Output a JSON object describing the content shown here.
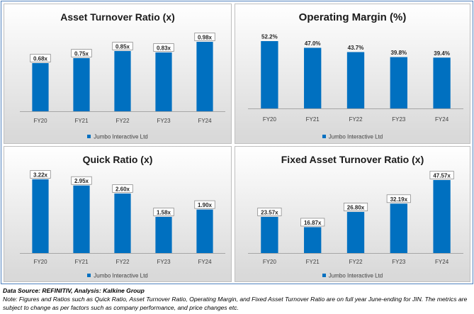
{
  "series_name": "Jumbo Interactive Ltd",
  "bar_color": "#0070c0",
  "chart_data": [
    {
      "type": "bar",
      "title": "Asset Turnover Ratio (x)",
      "categories": [
        "FY20",
        "FY21",
        "FY22",
        "FY23",
        "FY24"
      ],
      "values": [
        0.68,
        0.75,
        0.85,
        0.83,
        0.98
      ],
      "labels": [
        "0.68x",
        "0.75x",
        "0.85x",
        "0.83x",
        "0.98x"
      ],
      "series": [
        {
          "name": "Jumbo Interactive Ltd",
          "values": [
            0.68,
            0.75,
            0.85,
            0.83,
            0.98
          ]
        }
      ],
      "label_style": "boxed",
      "legend": "bottom"
    },
    {
      "type": "bar",
      "title": "Operating Margin (%)",
      "categories": [
        "FY20",
        "FY21",
        "FY22",
        "FY23",
        "FY24"
      ],
      "values": [
        52.2,
        47.0,
        43.7,
        39.8,
        39.4
      ],
      "labels": [
        "52.2%",
        "47.0%",
        "43.7%",
        "39.8%",
        "39.4%"
      ],
      "series": [
        {
          "name": "Jumbo Interactive Ltd",
          "values": [
            52.2,
            47.0,
            43.7,
            39.8,
            39.4
          ]
        }
      ],
      "label_style": "plain",
      "legend": "bottom"
    },
    {
      "type": "bar",
      "title": "Quick Ratio (x)",
      "categories": [
        "FY20",
        "FY21",
        "FY22",
        "FY23",
        "FY24"
      ],
      "values": [
        3.22,
        2.95,
        2.6,
        1.58,
        1.9
      ],
      "labels": [
        "3.22x",
        "2.95x",
        "2.60x",
        "1.58x",
        "1.90x"
      ],
      "series": [
        {
          "name": "Jumbo Interactive Ltd",
          "values": [
            3.22,
            2.95,
            2.6,
            1.58,
            1.9
          ]
        }
      ],
      "label_style": "boxed",
      "legend": "bottom"
    },
    {
      "type": "bar",
      "title": "Fixed Asset Turnover Ratio (x)",
      "categories": [
        "FY20",
        "FY21",
        "FY22",
        "FY23",
        "FY24"
      ],
      "values": [
        23.57,
        16.87,
        26.8,
        32.19,
        47.57
      ],
      "labels": [
        "23.57x",
        "16.87x",
        "26.80x",
        "32.19x",
        "47.57x"
      ],
      "series": [
        {
          "name": "Jumbo Interactive Ltd",
          "values": [
            23.57,
            16.87,
            26.8,
            32.19,
            47.57
          ]
        }
      ],
      "label_style": "boxed",
      "legend": "bottom"
    }
  ],
  "footer": {
    "source": "Data Source: REFINITIV, Analysis: Kalkine Group",
    "note": "Note: Figures and Ratios such as Quick Ratio, Asset Turnover Ratio, Operating Margin, and Fixed Asset Turnover Ratio are on full year June-ending for JIN. The metrics are subject to change as per factors such as company performance, and price changes etc."
  }
}
